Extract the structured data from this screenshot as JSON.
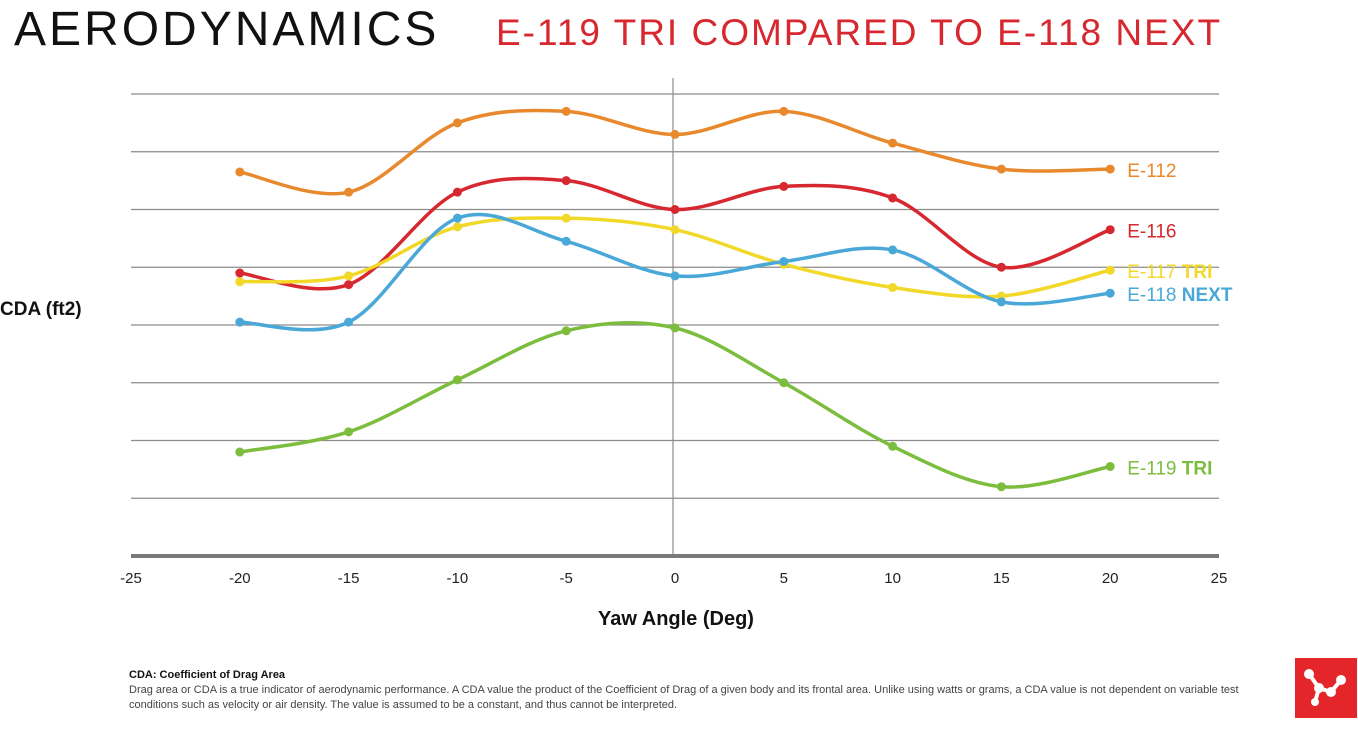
{
  "title": {
    "main": "AERODYNAMICS",
    "sub": "E-119 TRI COMPARED TO E-118 NEXT"
  },
  "colors": {
    "accent_red": "#d7272f",
    "grid": "#8c8c8c",
    "logo_bg": "#e4262a"
  },
  "chart_data": {
    "type": "line",
    "title": "",
    "xlabel": "Yaw Angle (Deg)",
    "ylabel": "CDA (ft2)",
    "xlim": [
      -25,
      25
    ],
    "ylim": [
      0,
      8
    ],
    "x_ticks": [
      -25,
      -20,
      -15,
      -10,
      -5,
      0,
      5,
      10,
      15,
      20,
      25
    ],
    "y_tick_labels_shown": false,
    "grid": "horizontal",
    "x": [
      -20,
      -15,
      -10,
      -5,
      0,
      5,
      10,
      15,
      20
    ],
    "series": [
      {
        "name": "E-112",
        "label_main": "E-112",
        "label_bold": "",
        "color": "#e8892e",
        "values": [
          6.65,
          6.3,
          7.5,
          7.7,
          7.3,
          7.7,
          7.15,
          6.7,
          6.7
        ]
      },
      {
        "name": "E-116",
        "label_main": "E-116",
        "label_bold": "",
        "color": "#d7272f",
        "values": [
          4.9,
          4.7,
          6.3,
          6.5,
          6.0,
          6.4,
          6.2,
          5.0,
          5.65
        ]
      },
      {
        "name": "E-117 TRI",
        "label_main": "E-117 ",
        "label_bold": "TRI",
        "color": "#f2d829",
        "values": [
          4.75,
          4.85,
          5.7,
          5.85,
          5.65,
          5.05,
          4.65,
          4.5,
          4.95
        ]
      },
      {
        "name": "E-118 NEXT",
        "label_main": "E-118 ",
        "label_bold": "NEXT",
        "color": "#4aa8d8",
        "values": [
          4.05,
          4.05,
          5.85,
          5.45,
          4.85,
          5.1,
          5.3,
          4.4,
          4.55
        ]
      },
      {
        "name": "E-119 TRI",
        "label_main": "E-119 ",
        "label_bold": "TRI",
        "color": "#7cbd3e",
        "values": [
          1.8,
          2.15,
          3.05,
          3.9,
          3.95,
          3.0,
          1.9,
          1.2,
          1.55
        ]
      }
    ]
  },
  "footnote": {
    "title": "CDA: Coefficient of Drag Area",
    "text": "Drag area or CDA is a true indicator of aerodynamic performance. A CDA value the product of the Coefficient of Drag of a given body and its frontal area. Unlike using watts or grams, a CDA value is not dependent on variable test conditions such as velocity or air density. The value is assumed to be a constant, and thus cannot be interpreted."
  },
  "logo": {
    "icon": "molecule-icon"
  }
}
